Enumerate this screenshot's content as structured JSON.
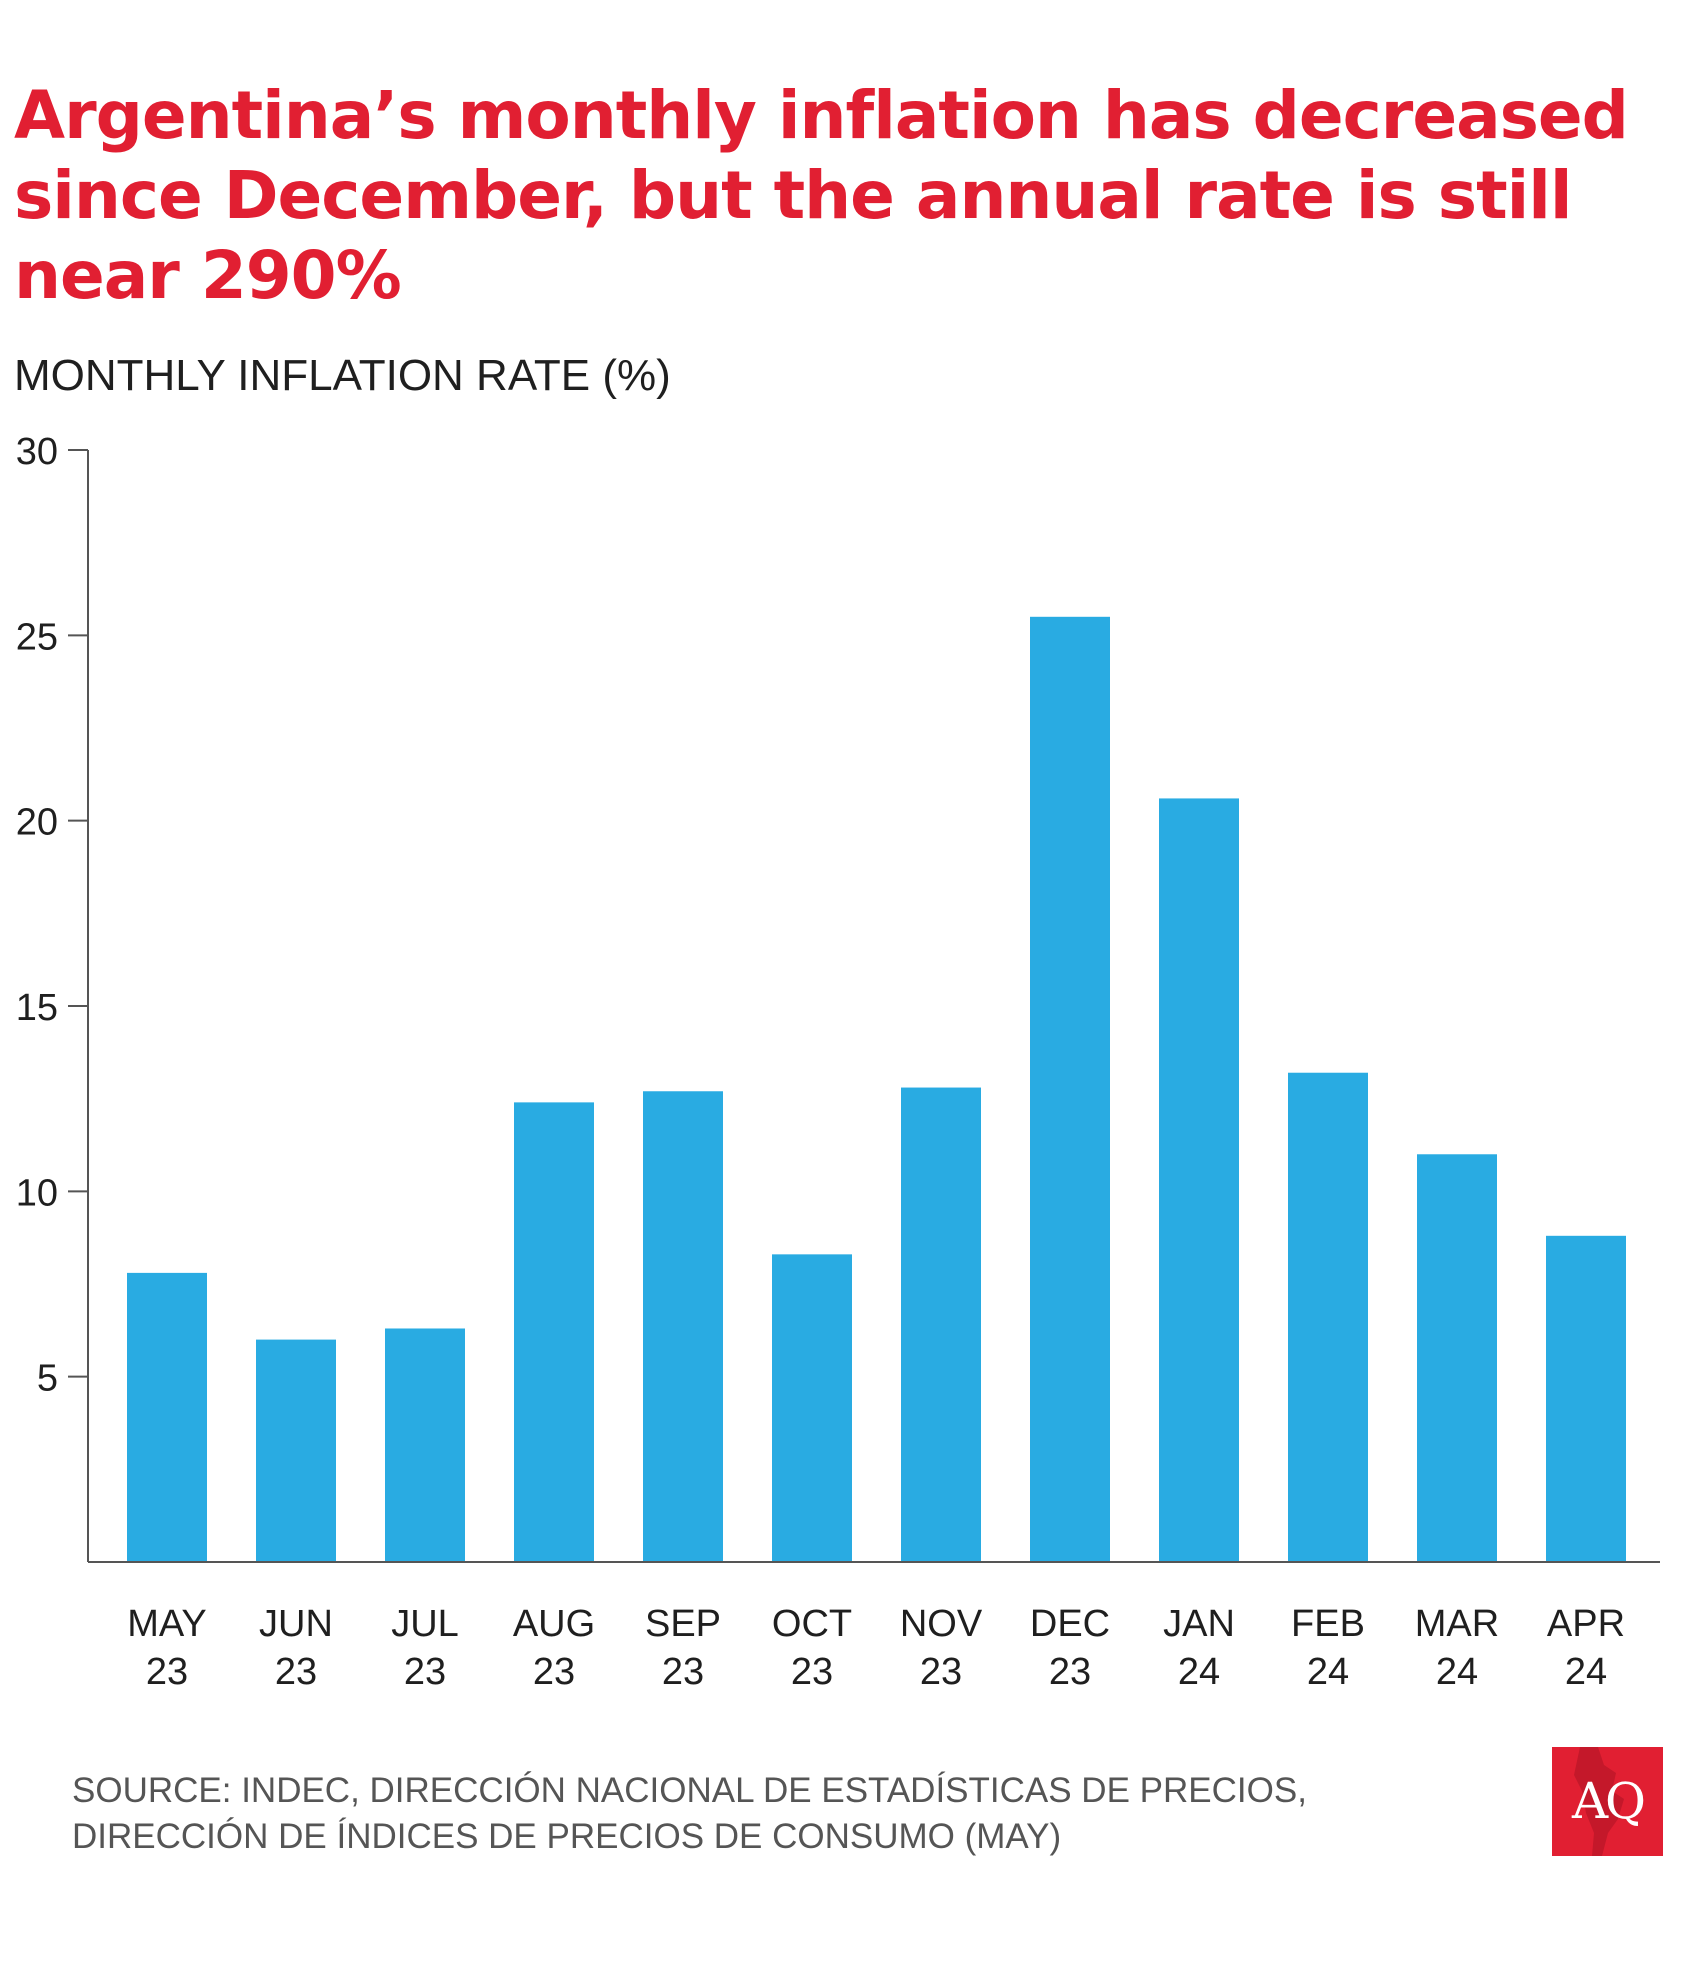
{
  "title": "Argentina’s monthly inflation has decreased since December, but the annual rate is still near 290%",
  "source": {
    "line1": "SOURCE: INDEC, DIRECCIÓN NACIONAL DE ESTADÍSTICAS DE PRECIOS,",
    "line2": "DIRECCIÓN DE ÍNDICES DE PRECIOS DE CONSUMO (MAY)"
  },
  "logo": {
    "text": "AQ",
    "background_color": "#e11f32"
  },
  "colors": {
    "title": "#e11f32",
    "bar": "#29abe2",
    "axis": "#555555",
    "text": "#1f1f1f"
  },
  "chart_data": {
    "type": "bar",
    "ylabel": "MONTHLY INFLATION RATE (%)",
    "xlabel": "",
    "ylim": [
      0,
      30
    ],
    "yticks": [
      5,
      10,
      15,
      20,
      25,
      30
    ],
    "grid": false,
    "categories": [
      [
        "MAY",
        "23"
      ],
      [
        "JUN",
        "23"
      ],
      [
        "JUL",
        "23"
      ],
      [
        "AUG",
        "23"
      ],
      [
        "SEP",
        "23"
      ],
      [
        "OCT",
        "23"
      ],
      [
        "NOV",
        "23"
      ],
      [
        "DEC",
        "23"
      ],
      [
        "JAN",
        "24"
      ],
      [
        "FEB",
        "24"
      ],
      [
        "MAR",
        "24"
      ],
      [
        "APR",
        "24"
      ]
    ],
    "values": [
      7.8,
      6.0,
      6.3,
      12.4,
      12.7,
      8.3,
      12.8,
      25.5,
      20.6,
      13.2,
      11.0,
      8.8
    ]
  }
}
